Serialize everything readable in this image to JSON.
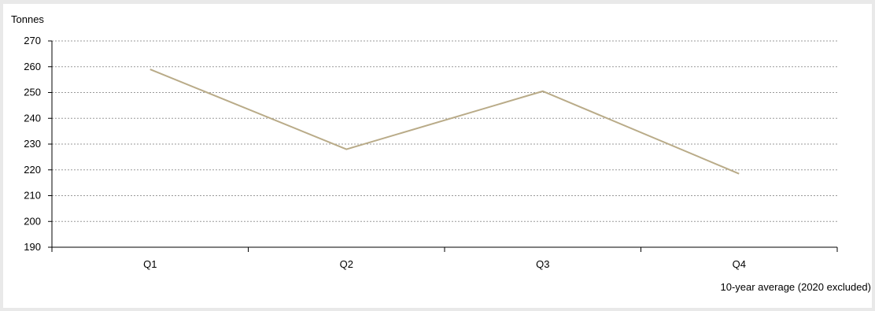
{
  "chart_data": {
    "type": "line",
    "title": "",
    "ylabel": "Tonnes",
    "xlabel": "10-year average (2020 excluded)",
    "categories": [
      "Q1",
      "Q2",
      "Q3",
      "Q4"
    ],
    "series": [
      {
        "values": [
          259,
          228,
          250.5,
          218.5
        ],
        "color": "#b9ab88"
      }
    ],
    "ylim": [
      190,
      270
    ],
    "yticks": [
      "190",
      "200",
      "210",
      "220",
      "230",
      "240",
      "250",
      "260",
      "270"
    ],
    "grid": true,
    "legend": "none"
  }
}
